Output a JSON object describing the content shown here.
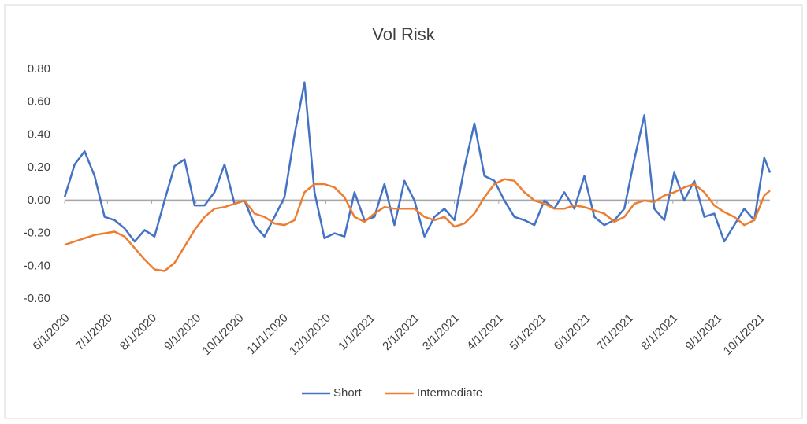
{
  "chart_data": {
    "type": "line",
    "title": "Vol Risk",
    "x": [
      "2020-06-01",
      "2020-06-08",
      "2020-06-15",
      "2020-06-22",
      "2020-06-29",
      "2020-07-06",
      "2020-07-13",
      "2020-07-20",
      "2020-07-27",
      "2020-08-03",
      "2020-08-10",
      "2020-08-17",
      "2020-08-24",
      "2020-08-31",
      "2020-09-07",
      "2020-09-14",
      "2020-09-21",
      "2020-09-28",
      "2020-10-05",
      "2020-10-12",
      "2020-10-19",
      "2020-10-26",
      "2020-11-02",
      "2020-11-09",
      "2020-11-16",
      "2020-11-23",
      "2020-11-30",
      "2020-12-07",
      "2020-12-14",
      "2020-12-21",
      "2020-12-28",
      "2021-01-04",
      "2021-01-11",
      "2021-01-18",
      "2021-01-25",
      "2021-02-01",
      "2021-02-08",
      "2021-02-15",
      "2021-02-22",
      "2021-03-01",
      "2021-03-08",
      "2021-03-15",
      "2021-03-22",
      "2021-03-29",
      "2021-04-05",
      "2021-04-12",
      "2021-04-19",
      "2021-04-26",
      "2021-05-03",
      "2021-05-10",
      "2021-05-17",
      "2021-05-24",
      "2021-05-31",
      "2021-06-07",
      "2021-06-14",
      "2021-06-21",
      "2021-06-28",
      "2021-07-05",
      "2021-07-12",
      "2021-07-19",
      "2021-07-26",
      "2021-08-02",
      "2021-08-09",
      "2021-08-16",
      "2021-08-23",
      "2021-08-30",
      "2021-09-06",
      "2021-09-13",
      "2021-09-20",
      "2021-09-27",
      "2021-10-04",
      "2021-10-08"
    ],
    "series": [
      {
        "name": "Short",
        "color": "#4472c4",
        "values": [
          0.02,
          0.22,
          0.3,
          0.15,
          -0.1,
          -0.12,
          -0.17,
          -0.25,
          -0.18,
          -0.22,
          0.0,
          0.21,
          0.25,
          -0.03,
          -0.03,
          0.05,
          0.22,
          -0.02,
          0.0,
          -0.15,
          -0.22,
          -0.1,
          0.02,
          0.4,
          0.72,
          0.05,
          -0.23,
          -0.2,
          -0.22,
          0.05,
          -0.12,
          -0.1,
          0.1,
          -0.15,
          0.12,
          0.0,
          -0.22,
          -0.1,
          -0.05,
          -0.12,
          0.2,
          0.47,
          0.15,
          0.12,
          0.0,
          -0.1,
          -0.12,
          -0.15,
          0.0,
          -0.05,
          0.05,
          -0.05,
          0.15,
          -0.1,
          -0.15,
          -0.12,
          -0.05,
          0.25,
          0.52,
          -0.05,
          -0.12,
          0.17,
          0.0,
          0.12,
          -0.1,
          -0.08,
          -0.25,
          -0.15,
          -0.05,
          -0.12,
          0.26,
          0.17
        ]
      },
      {
        "name": "Intermediate",
        "color": "#ed7d31",
        "values": [
          -0.27,
          -0.25,
          -0.23,
          -0.21,
          -0.2,
          -0.19,
          -0.22,
          -0.29,
          -0.36,
          -0.42,
          -0.43,
          -0.38,
          -0.28,
          -0.18,
          -0.1,
          -0.05,
          -0.04,
          -0.02,
          0.0,
          -0.08,
          -0.1,
          -0.14,
          -0.15,
          -0.12,
          0.05,
          0.1,
          0.1,
          0.08,
          0.02,
          -0.1,
          -0.13,
          -0.08,
          -0.04,
          -0.05,
          -0.05,
          -0.05,
          -0.1,
          -0.12,
          -0.1,
          -0.16,
          -0.14,
          -0.08,
          0.02,
          0.1,
          0.13,
          0.12,
          0.05,
          0.0,
          -0.02,
          -0.05,
          -0.05,
          -0.03,
          -0.04,
          -0.06,
          -0.08,
          -0.13,
          -0.1,
          -0.02,
          0.0,
          -0.01,
          0.03,
          0.05,
          0.08,
          0.1,
          0.05,
          -0.03,
          -0.07,
          -0.1,
          -0.15,
          -0.12,
          0.03,
          0.06
        ]
      }
    ],
    "xlim": [
      "2020-06-01",
      "2021-10-08"
    ],
    "xticks": [
      {
        "value": "2020-06-01",
        "label": "6/1/2020"
      },
      {
        "value": "2020-07-01",
        "label": "7/1/2020"
      },
      {
        "value": "2020-08-01",
        "label": "8/1/2020"
      },
      {
        "value": "2020-09-01",
        "label": "9/1/2020"
      },
      {
        "value": "2020-10-01",
        "label": "10/1/2020"
      },
      {
        "value": "2020-11-01",
        "label": "11/1/2020"
      },
      {
        "value": "2020-12-01",
        "label": "12/1/2020"
      },
      {
        "value": "2021-01-01",
        "label": "1/1/2021"
      },
      {
        "value": "2021-02-01",
        "label": "2/1/2021"
      },
      {
        "value": "2021-03-01",
        "label": "3/1/2021"
      },
      {
        "value": "2021-04-01",
        "label": "4/1/2021"
      },
      {
        "value": "2021-05-01",
        "label": "5/1/2021"
      },
      {
        "value": "2021-06-01",
        "label": "6/1/2021"
      },
      {
        "value": "2021-07-01",
        "label": "7/1/2021"
      },
      {
        "value": "2021-08-01",
        "label": "8/1/2021"
      },
      {
        "value": "2021-09-01",
        "label": "9/1/2021"
      },
      {
        "value": "2021-10-01",
        "label": "10/1/2021"
      }
    ],
    "ylim": [
      -0.6,
      0.8
    ],
    "yticks": [
      {
        "value": -0.6,
        "label": "-0.60"
      },
      {
        "value": -0.4,
        "label": "-0.40"
      },
      {
        "value": -0.2,
        "label": "-0.20"
      },
      {
        "value": 0,
        "label": "0.00"
      },
      {
        "value": 0.2,
        "label": "0.20"
      },
      {
        "value": 0.4,
        "label": "0.40"
      },
      {
        "value": 0.6,
        "label": "0.60"
      },
      {
        "value": 0.8,
        "label": "0.80"
      }
    ],
    "grid": false,
    "legend": "bottom"
  }
}
